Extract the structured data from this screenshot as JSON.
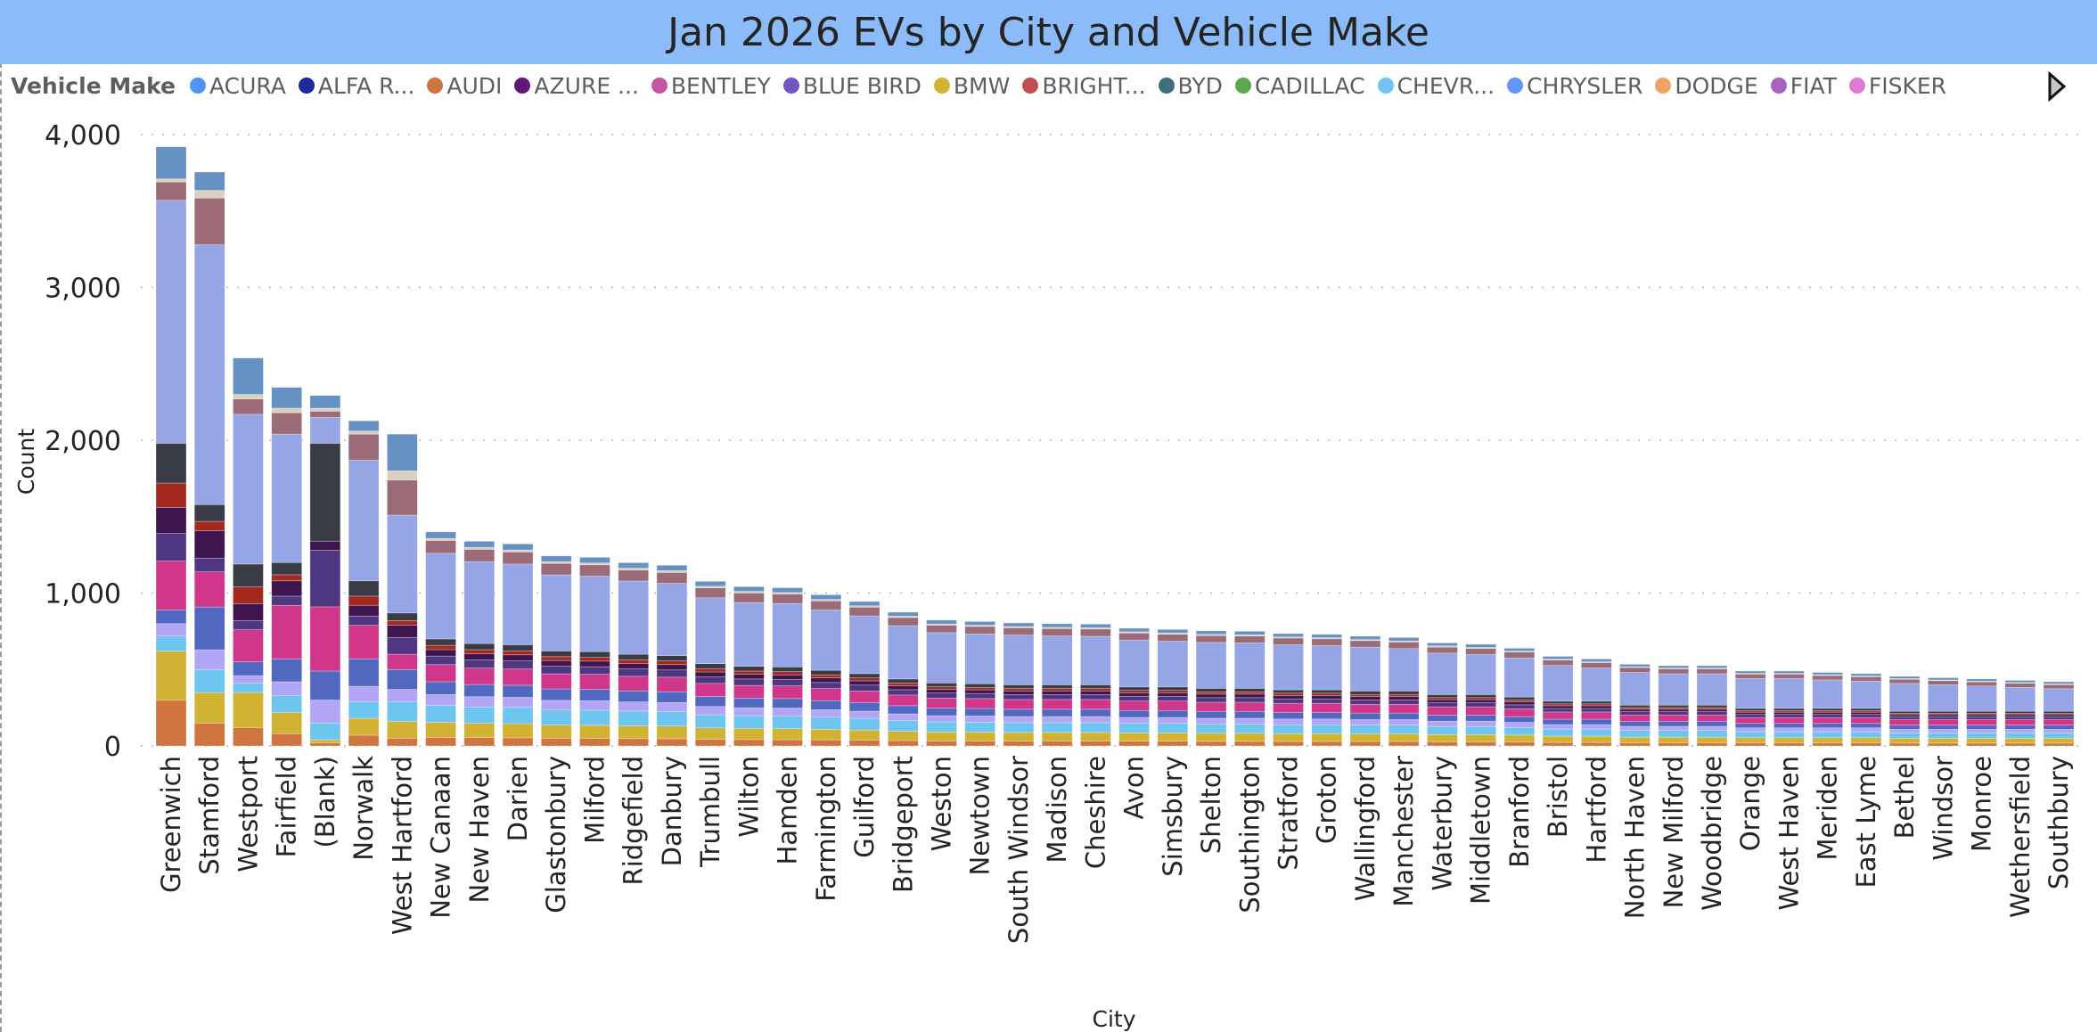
{
  "title": "Jan 2026 EVs by City and Vehicle Make",
  "legend": {
    "title": "Vehicle Make",
    "items": [
      {
        "label": "ACURA",
        "color": "#4f94f7"
      },
      {
        "label": "ALFA R...",
        "color": "#1f2a9a"
      },
      {
        "label": "AUDI",
        "color": "#d07540"
      },
      {
        "label": "AZURE ...",
        "color": "#5f1a75"
      },
      {
        "label": "BENTLEY",
        "color": "#c956a4"
      },
      {
        "label": "BLUE BIRD",
        "color": "#7256c0"
      },
      {
        "label": "BMW",
        "color": "#d1b232"
      },
      {
        "label": "BRIGHT...",
        "color": "#c05050"
      },
      {
        "label": "BYD",
        "color": "#3e6e76"
      },
      {
        "label": "CADILLAC",
        "color": "#5ba84e"
      },
      {
        "label": "CHEVR...",
        "color": "#6dc5f0"
      },
      {
        "label": "CHRYSLER",
        "color": "#6494f8"
      },
      {
        "label": "DODGE",
        "color": "#eca464"
      },
      {
        "label": "FIAT",
        "color": "#a862c4"
      },
      {
        "label": "FISKER",
        "color": "#e07cd0"
      }
    ],
    "next_page_icon": "triangle-right-icon"
  },
  "chart_data": {
    "type": "bar",
    "stacked": true,
    "title": "Jan 2026 EVs by City and Vehicle Make",
    "xlabel": "City",
    "ylabel": "Count",
    "ylim": [
      0,
      4000
    ],
    "yticks": [
      "0",
      "1,000",
      "2,000",
      "3,000",
      "4,000"
    ],
    "ytick_values": [
      0,
      1000,
      2000,
      3000,
      4000
    ],
    "grid": true,
    "legend_position": "top",
    "categories": [
      "Greenwich",
      "Stamford",
      "Westport",
      "Fairfield",
      "(Blank)",
      "Norwalk",
      "West Hartford",
      "New Canaan",
      "New Haven",
      "Darien",
      "Glastonbury",
      "Milford",
      "Ridgefield",
      "Danbury",
      "Trumbull",
      "Wilton",
      "Hamden",
      "Farmington",
      "Guilford",
      "Bridgeport",
      "Weston",
      "Newtown",
      "South Windsor",
      "Madison",
      "Cheshire",
      "Avon",
      "Simsbury",
      "Shelton",
      "Southington",
      "Stratford",
      "Groton",
      "Wallingford",
      "Manchester",
      "Waterbury",
      "Middletown",
      "Branford",
      "Bristol",
      "Hartford",
      "North Haven",
      "New Milford",
      "Woodbridge",
      "Orange",
      "West Haven",
      "Meriden",
      "East Lyme",
      "Bethel",
      "Windsor",
      "Monroe",
      "Wethersfield",
      "Southbury"
    ],
    "series": [
      {
        "name": "AUDI",
        "color": "#d07540"
      },
      {
        "name": "BMW",
        "color": "#d1b232"
      },
      {
        "name": "CHEVR...",
        "color": "#6dc5f0"
      },
      {
        "name": "",
        "color": "#b3a5f5"
      },
      {
        "name": "",
        "color": "#5068c0"
      },
      {
        "name": "",
        "color": "#d0368a"
      },
      {
        "name": "",
        "color": "#4f3680"
      },
      {
        "name": "",
        "color": "#3f1550"
      },
      {
        "name": "",
        "color": "#a5281f"
      },
      {
        "name": "",
        "color": "#393c45"
      },
      {
        "name": "",
        "color": "#95a5e6"
      },
      {
        "name": "",
        "color": "#9b6b77"
      },
      {
        "name": "",
        "color": "#dbd0c0"
      },
      {
        "name": "",
        "color": "#6592c3"
      }
    ],
    "values_by_city": [
      [
        300,
        320,
        100,
        80,
        90,
        320,
        180,
        170,
        160,
        260,
        1590,
        120,
        20,
        210
      ],
      [
        149,
        200,
        150,
        130,
        280,
        230,
        90,
        180,
        60,
        110,
        1700,
        306,
        50,
        120
      ],
      [
        120,
        230,
        60,
        50,
        90,
        210,
        60,
        110,
        110,
        150,
        980,
        100,
        30,
        238
      ],
      [
        80,
        140,
        110,
        90,
        150,
        350,
        60,
        100,
        40,
        80,
        840,
        140,
        30,
        136
      ],
      [
        20,
        20,
        110,
        150,
        190,
        420,
        370,
        60,
        0,
        640,
        170,
        40,
        20,
        83
      ],
      [
        70,
        110,
        110,
        100,
        180,
        220,
        60,
        70,
        60,
        100,
        790,
        170,
        20,
        67
      ],
      [
        50,
        110,
        130,
        80,
        130,
        100,
        110,
        80,
        30,
        50,
        640,
        230,
        60,
        240
      ],
      [
        56,
        98,
        112,
        70,
        84,
        112,
        56,
        42,
        28,
        42,
        560,
        84,
        14,
        42
      ],
      [
        54,
        94,
        107,
        67,
        80,
        107,
        54,
        40,
        27,
        40,
        536,
        80,
        13,
        40
      ],
      [
        53,
        93,
        106,
        66,
        79,
        106,
        53,
        40,
        26,
        40,
        528,
        79,
        13,
        40
      ],
      [
        50,
        87,
        99,
        62,
        75,
        99,
        50,
        37,
        25,
        37,
        498,
        75,
        12,
        37
      ],
      [
        49,
        86,
        99,
        62,
        74,
        99,
        49,
        37,
        25,
        37,
        494,
        74,
        12,
        37
      ],
      [
        48,
        84,
        96,
        60,
        72,
        96,
        48,
        36,
        24,
        36,
        479,
        72,
        12,
        36
      ],
      [
        47,
        83,
        95,
        59,
        71,
        95,
        47,
        35,
        24,
        35,
        473,
        71,
        12,
        35
      ],
      [
        43,
        75,
        86,
        54,
        65,
        86,
        43,
        32,
        22,
        32,
        431,
        65,
        11,
        32
      ],
      [
        42,
        73,
        83,
        52,
        63,
        83,
        42,
        31,
        21,
        31,
        417,
        63,
        10,
        31
      ],
      [
        41,
        72,
        83,
        52,
        62,
        83,
        41,
        31,
        21,
        31,
        415,
        62,
        10,
        31
      ],
      [
        40,
        69,
        79,
        49,
        59,
        79,
        40,
        30,
        20,
        30,
        395,
        59,
        10,
        30
      ],
      [
        38,
        66,
        76,
        47,
        57,
        76,
        38,
        28,
        19,
        28,
        378,
        57,
        9,
        28
      ],
      [
        35,
        61,
        70,
        44,
        53,
        70,
        35,
        26,
        18,
        26,
        349,
        53,
        9,
        26
      ],
      [
        33,
        58,
        66,
        41,
        49,
        66,
        33,
        25,
        16,
        25,
        329,
        49,
        8,
        25
      ],
      [
        33,
        57,
        65,
        41,
        49,
        65,
        33,
        24,
        16,
        24,
        326,
        49,
        8,
        24
      ],
      [
        32,
        56,
        64,
        40,
        48,
        64,
        32,
        24,
        16,
        24,
        325,
        48,
        8,
        24
      ],
      [
        32,
        56,
        64,
        40,
        48,
        64,
        32,
        24,
        16,
        24,
        320,
        48,
        8,
        24
      ],
      [
        32,
        56,
        64,
        40,
        48,
        64,
        32,
        24,
        16,
        24,
        317,
        48,
        8,
        24
      ],
      [
        31,
        54,
        62,
        39,
        46,
        62,
        31,
        23,
        15,
        23,
        307,
        46,
        8,
        23
      ],
      [
        31,
        54,
        62,
        39,
        46,
        62,
        31,
        23,
        15,
        23,
        299,
        46,
        8,
        23
      ],
      [
        30,
        53,
        60,
        38,
        45,
        60,
        30,
        23,
        15,
        23,
        300,
        45,
        8,
        23
      ],
      [
        30,
        53,
        60,
        38,
        45,
        60,
        30,
        23,
        15,
        23,
        297,
        45,
        8,
        23
      ],
      [
        29,
        51,
        59,
        37,
        44,
        59,
        29,
        22,
        15,
        22,
        295,
        44,
        7,
        22
      ],
      [
        29,
        51,
        59,
        37,
        44,
        59,
        29,
        22,
        15,
        22,
        290,
        44,
        7,
        22
      ],
      [
        29,
        50,
        57,
        36,
        43,
        57,
        29,
        22,
        14,
        22,
        287,
        43,
        7,
        22
      ],
      [
        29,
        50,
        57,
        36,
        43,
        57,
        29,
        22,
        14,
        22,
        278,
        43,
        7,
        22
      ],
      [
        27,
        47,
        54,
        34,
        40,
        54,
        27,
        20,
        13,
        20,
        271,
        40,
        7,
        20
      ],
      [
        27,
        47,
        54,
        34,
        40,
        54,
        27,
        20,
        13,
        20,
        262,
        40,
        7,
        20
      ],
      [
        26,
        45,
        51,
        32,
        38,
        51,
        26,
        19,
        13,
        19,
        256,
        38,
        6,
        19
      ],
      [
        23,
        41,
        47,
        29,
        35,
        47,
        23,
        18,
        12,
        18,
        234,
        35,
        6,
        18
      ],
      [
        23,
        41,
        47,
        29,
        35,
        47,
        23,
        18,
        12,
        18,
        217,
        35,
        6,
        18
      ],
      [
        21,
        37,
        43,
        27,
        32,
        43,
        21,
        16,
        11,
        16,
        214,
        32,
        5,
        16
      ],
      [
        21,
        37,
        43,
        27,
        32,
        43,
        21,
        16,
        11,
        16,
        205,
        32,
        5,
        16
      ],
      [
        21,
        37,
        43,
        27,
        32,
        43,
        21,
        16,
        11,
        16,
        205,
        32,
        5,
        16
      ],
      [
        20,
        34,
        39,
        25,
        29,
        39,
        20,
        15,
        10,
        15,
        195,
        29,
        5,
        15
      ],
      [
        20,
        34,
        39,
        25,
        29,
        39,
        20,
        15,
        10,
        15,
        195,
        29,
        5,
        15
      ],
      [
        20,
        34,
        39,
        25,
        29,
        39,
        20,
        15,
        10,
        15,
        186,
        29,
        5,
        15
      ],
      [
        20,
        34,
        39,
        25,
        29,
        39,
        20,
        15,
        10,
        15,
        178,
        29,
        5,
        15
      ],
      [
        18,
        32,
        36,
        23,
        27,
        36,
        18,
        14,
        9,
        14,
        182,
        27,
        5,
        14
      ],
      [
        18,
        32,
        36,
        23,
        27,
        36,
        18,
        14,
        9,
        14,
        173,
        27,
        5,
        14
      ],
      [
        18,
        32,
        36,
        23,
        27,
        36,
        18,
        14,
        9,
        14,
        165,
        27,
        5,
        14
      ],
      [
        18,
        32,
        36,
        23,
        27,
        36,
        18,
        14,
        9,
        14,
        156,
        27,
        5,
        14
      ],
      [
        18,
        32,
        36,
        23,
        27,
        36,
        18,
        14,
        9,
        14,
        147,
        27,
        5,
        14
      ]
    ]
  }
}
